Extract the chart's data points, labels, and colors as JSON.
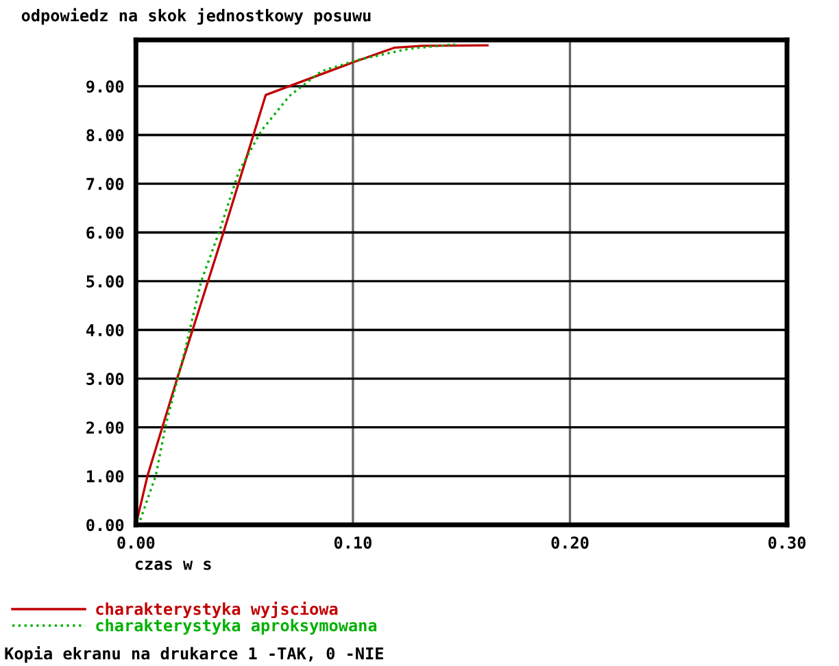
{
  "chart_data": {
    "type": "line",
    "title": "odpowiedz na skok jednostkowy posuwu",
    "xlabel": "czas w s",
    "xlim": [
      0,
      0.3
    ],
    "ylim": [
      0,
      9.95
    ],
    "xticks": [
      {
        "value": 0,
        "label": "0.00"
      },
      {
        "value": 0.1,
        "label": "0.10"
      },
      {
        "value": 0.2,
        "label": "0.20"
      },
      {
        "value": 0.3,
        "label": "0.30"
      }
    ],
    "yticks": [
      {
        "value": 0,
        "label": "0.00"
      },
      {
        "value": 1,
        "label": "1.00"
      },
      {
        "value": 2,
        "label": "2.00"
      },
      {
        "value": 3,
        "label": "3.00"
      },
      {
        "value": 4,
        "label": "4.00"
      },
      {
        "value": 5,
        "label": "5.00"
      },
      {
        "value": 6,
        "label": "6.00"
      },
      {
        "value": 7,
        "label": "7.00"
      },
      {
        "value": 8,
        "label": "8.00"
      },
      {
        "value": 9,
        "label": "9.00"
      }
    ],
    "grid": true,
    "legend": "bottom left",
    "marker": "none",
    "series": [
      {
        "name": "charakterystyka wyjsciowa",
        "color": "#c00000",
        "line_style": "solid",
        "x": [
          0,
          0.0053,
          0.019,
          0.04,
          0.0598,
          0.1,
          0.119,
          0.132,
          0.162
        ],
        "values": [
          0,
          1.0,
          3.0,
          5.95,
          8.82,
          9.49,
          9.79,
          9.83,
          9.84
        ]
      },
      {
        "name": "charakterystyka aproksymowana",
        "color": "#00b000",
        "line_style": "dotted",
        "x": [
          0.002,
          0.0091,
          0.0137,
          0.0227,
          0.0301,
          0.0385,
          0.0474,
          0.058,
          0.0707,
          0.0855,
          0.1023,
          0.1258,
          0.147
        ],
        "values": [
          0.1,
          1.0,
          2.04,
          3.6,
          5.0,
          6.03,
          7.25,
          8.1,
          8.8,
          9.31,
          9.54,
          9.77,
          9.86
        ]
      }
    ],
    "annotations": [
      "Kopia ekranu na drukarce 1 -TAK, 0 -NIE"
    ]
  }
}
